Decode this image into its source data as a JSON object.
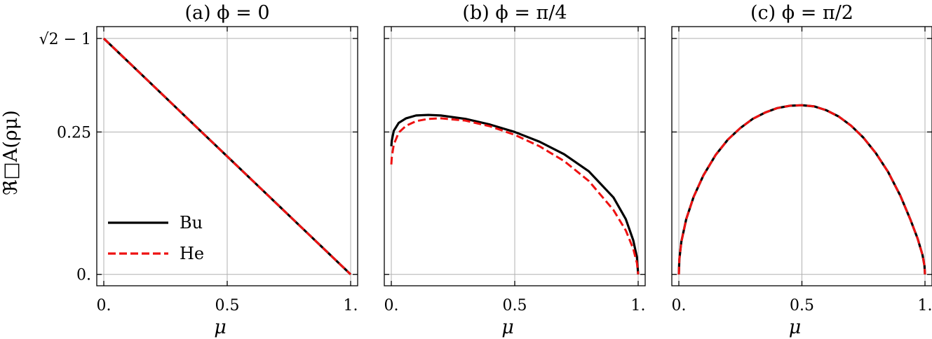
{
  "chart_data": [
    {
      "type": "line",
      "title": "(a) ϕ = 0",
      "xlabel": "μ",
      "ylabel": "ℜ□A(ρμ)",
      "xlim": [
        0,
        1
      ],
      "ylim": [
        -0.02,
        0.435
      ],
      "x_ticks": [
        {
          "value": 0,
          "label": "0."
        },
        {
          "value": 0.5,
          "label": "0.5"
        },
        {
          "value": 1,
          "label": "1."
        }
      ],
      "y_ticks": [
        {
          "value": 0,
          "label": "0."
        },
        {
          "value": 0.25,
          "label": "0.25"
        },
        {
          "value": 0.4142,
          "label": "√2 − 1"
        }
      ],
      "grid": true,
      "legend": {
        "placement": "lower-left",
        "entries": [
          "Bu",
          "He"
        ]
      },
      "series": [
        {
          "name": "Bu",
          "color": "#000000",
          "style": "solid",
          "x": [
            0,
            0.1,
            0.2,
            0.3,
            0.4,
            0.5,
            0.6,
            0.7,
            0.8,
            0.9,
            1.0
          ],
          "y": [
            0.4142,
            0.3728,
            0.3314,
            0.2899,
            0.2485,
            0.2071,
            0.1657,
            0.1243,
            0.0828,
            0.0414,
            0.0
          ]
        },
        {
          "name": "He",
          "color": "#ee1111",
          "style": "dashed",
          "x": [
            0,
            0.1,
            0.2,
            0.3,
            0.4,
            0.5,
            0.6,
            0.7,
            0.8,
            0.9,
            1.0
          ],
          "y": [
            0.4142,
            0.3728,
            0.3314,
            0.2899,
            0.2485,
            0.2071,
            0.1657,
            0.1243,
            0.0828,
            0.0414,
            0.0
          ]
        }
      ]
    },
    {
      "type": "line",
      "title": "(b) ϕ = π/4",
      "xlabel": "μ",
      "xlim": [
        0,
        1
      ],
      "ylim": [
        -0.02,
        0.435
      ],
      "x_ticks": [
        {
          "value": 0,
          "label": "0."
        },
        {
          "value": 0.5,
          "label": "0.5"
        },
        {
          "value": 1,
          "label": "1."
        }
      ],
      "y_ticks": [
        {
          "value": 0,
          "label": ""
        },
        {
          "value": 0.25,
          "label": ""
        },
        {
          "value": 0.4142,
          "label": ""
        }
      ],
      "grid": true,
      "series": [
        {
          "name": "Bu",
          "color": "#000000",
          "style": "solid",
          "x": [
            0,
            0.002,
            0.01,
            0.03,
            0.06,
            0.1,
            0.15,
            0.2,
            0.3,
            0.4,
            0.5,
            0.6,
            0.7,
            0.8,
            0.9,
            0.95,
            0.98,
            0.995,
            1.0
          ],
          "y": [
            0.225,
            0.235,
            0.252,
            0.266,
            0.274,
            0.279,
            0.28,
            0.279,
            0.273,
            0.263,
            0.25,
            0.233,
            0.211,
            0.181,
            0.135,
            0.097,
            0.06,
            0.03,
            0.0
          ]
        },
        {
          "name": "He",
          "color": "#ee1111",
          "style": "dashed",
          "x": [
            0,
            0.002,
            0.01,
            0.03,
            0.06,
            0.1,
            0.15,
            0.2,
            0.3,
            0.4,
            0.5,
            0.6,
            0.7,
            0.8,
            0.9,
            0.95,
            0.98,
            0.995,
            1.0
          ],
          "y": [
            0.193,
            0.206,
            0.228,
            0.249,
            0.261,
            0.269,
            0.273,
            0.274,
            0.27,
            0.26,
            0.245,
            0.225,
            0.199,
            0.164,
            0.113,
            0.077,
            0.045,
            0.02,
            0.0
          ]
        }
      ]
    },
    {
      "type": "line",
      "title": "(c) ϕ = π/2",
      "xlabel": "μ",
      "xlim": [
        0,
        1
      ],
      "ylim": [
        -0.02,
        0.435
      ],
      "x_ticks": [
        {
          "value": 0,
          "label": "0."
        },
        {
          "value": 0.5,
          "label": "0.5"
        },
        {
          "value": 1,
          "label": "1."
        }
      ],
      "y_ticks": [
        {
          "value": 0,
          "label": ""
        },
        {
          "value": 0.25,
          "label": ""
        },
        {
          "value": 0.4142,
          "label": ""
        }
      ],
      "grid": true,
      "series": [
        {
          "name": "Bu",
          "color": "#000000",
          "style": "solid",
          "x": [
            0,
            0.002,
            0.01,
            0.03,
            0.06,
            0.1,
            0.15,
            0.2,
            0.25,
            0.3,
            0.35,
            0.4,
            0.45,
            0.5,
            0.55,
            0.6,
            0.65,
            0.7,
            0.75,
            0.8,
            0.85,
            0.9,
            0.94,
            0.97,
            0.99,
            0.998,
            1.0
          ],
          "y": [
            0.0,
            0.026,
            0.057,
            0.097,
            0.136,
            0.174,
            0.21,
            0.237,
            0.257,
            0.273,
            0.284,
            0.292,
            0.296,
            0.297,
            0.295,
            0.288,
            0.277,
            0.261,
            0.24,
            0.213,
            0.18,
            0.138,
            0.097,
            0.063,
            0.034,
            0.015,
            0.0
          ]
        },
        {
          "name": "He",
          "color": "#ee1111",
          "style": "dashed",
          "x": [
            0,
            0.002,
            0.01,
            0.03,
            0.06,
            0.1,
            0.15,
            0.2,
            0.25,
            0.3,
            0.35,
            0.4,
            0.45,
            0.5,
            0.55,
            0.6,
            0.65,
            0.7,
            0.75,
            0.8,
            0.85,
            0.9,
            0.94,
            0.97,
            0.99,
            0.998,
            1.0
          ],
          "y": [
            0.0,
            0.026,
            0.057,
            0.097,
            0.136,
            0.174,
            0.21,
            0.237,
            0.257,
            0.273,
            0.284,
            0.292,
            0.296,
            0.297,
            0.295,
            0.288,
            0.277,
            0.261,
            0.24,
            0.213,
            0.18,
            0.138,
            0.097,
            0.063,
            0.034,
            0.015,
            0.0
          ]
        }
      ]
    }
  ]
}
